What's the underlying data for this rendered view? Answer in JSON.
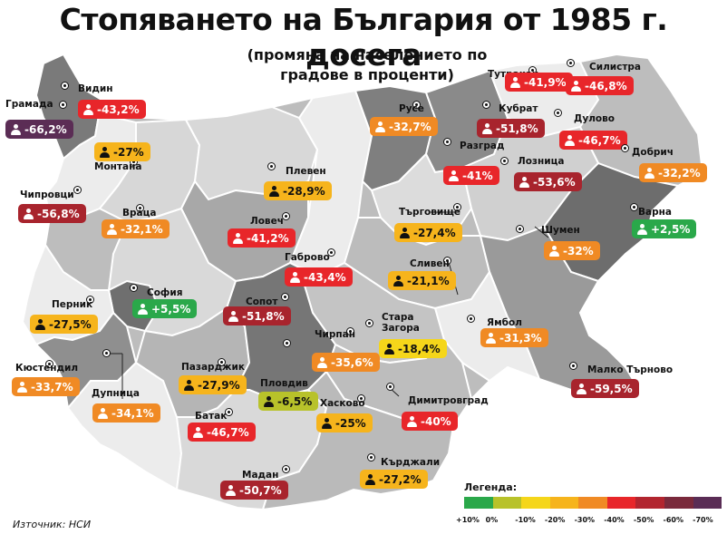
{
  "title": "Стопяването на България от 1985 г. досега",
  "subtitle": "(промяна на населението по градове в проценти)",
  "source": "Източник: НСИ",
  "legend": {
    "title": "Легенда:",
    "colors": [
      "#2aa84a",
      "#b8c22a",
      "#f5d61a",
      "#f6b41c",
      "#f08a24",
      "#e8262a",
      "#b2252f",
      "#7a2a3c",
      "#5a2d55"
    ],
    "ticks": [
      "+10%",
      "0%",
      "-10%",
      "-20%",
      "-30%",
      "-40%",
      "-50%",
      "-60%",
      "-70%"
    ]
  },
  "cities": [
    {
      "name": "Грамада",
      "value": "-66,2%",
      "color": "#5b2d55",
      "text": "#fff"
    },
    {
      "name": "Видин",
      "value": "-43,2%",
      "color": "#e8262a",
      "text": "#fff"
    },
    {
      "name": "Монтана",
      "value": "-27%",
      "color": "#f6b41c",
      "text": "#111"
    },
    {
      "name": "Чипровци",
      "value": "-56,8%",
      "color": "#a8242d",
      "text": "#fff"
    },
    {
      "name": "Враца",
      "value": "-32,1%",
      "color": "#f08a24",
      "text": "#fff"
    },
    {
      "name": "Плевен",
      "value": "-28,9%",
      "color": "#f6b41c",
      "text": "#111"
    },
    {
      "name": "Ловеч",
      "value": "-41,2%",
      "color": "#e8262a",
      "text": "#fff"
    },
    {
      "name": "Габрово",
      "value": "-43,4%",
      "color": "#e8262a",
      "text": "#fff"
    },
    {
      "name": "Русе",
      "value": "-32,7%",
      "color": "#f08a24",
      "text": "#fff"
    },
    {
      "name": "Тутракан",
      "value": "-41,9%",
      "color": "#e8262a",
      "text": "#fff"
    },
    {
      "name": "Силистра",
      "value": "-46,8%",
      "color": "#e8262a",
      "text": "#fff"
    },
    {
      "name": "Кубрат",
      "value": "-51,8%",
      "color": "#a8242d",
      "text": "#fff"
    },
    {
      "name": "Дулово",
      "value": "-46,7%",
      "color": "#e8262a",
      "text": "#fff"
    },
    {
      "name": "Разград",
      "value": "-41%",
      "color": "#e8262a",
      "text": "#fff"
    },
    {
      "name": "Лозница",
      "value": "-53,6%",
      "color": "#a8242d",
      "text": "#fff"
    },
    {
      "name": "Добрич",
      "value": "-32,2%",
      "color": "#f08a24",
      "text": "#fff"
    },
    {
      "name": "Търговище",
      "value": "-27,4%",
      "color": "#f6b41c",
      "text": "#111"
    },
    {
      "name": "Шумен",
      "value": "-32%",
      "color": "#f08a24",
      "text": "#fff"
    },
    {
      "name": "Варна",
      "value": "+2,5%",
      "color": "#2aa84a",
      "text": "#fff"
    },
    {
      "name": "Сливен",
      "value": "-21,1%",
      "color": "#f6b41c",
      "text": "#111"
    },
    {
      "name": "Перник",
      "value": "-27,5%",
      "color": "#f6b41c",
      "text": "#111"
    },
    {
      "name": "София",
      "value": "+5,5%",
      "color": "#2aa84a",
      "text": "#fff"
    },
    {
      "name": "Сопот",
      "value": "-51,8%",
      "color": "#a8242d",
      "text": "#fff"
    },
    {
      "name": "Чирпан",
      "value": "-35,6%",
      "color": "#f08a24",
      "text": "#fff"
    },
    {
      "name": "Стара Загора",
      "value": "-18,4%",
      "color": "#f5d61a",
      "text": "#111"
    },
    {
      "name": "Ямбол",
      "value": "-31,3%",
      "color": "#f08a24",
      "text": "#fff"
    },
    {
      "name": "Кюстендил",
      "value": "-33,7%",
      "color": "#f08a24",
      "text": "#fff"
    },
    {
      "name": "Дупница",
      "value": "-34,1%",
      "color": "#f08a24",
      "text": "#fff"
    },
    {
      "name": "Пазарджик",
      "value": "-27,9%",
      "color": "#f6b41c",
      "text": "#111"
    },
    {
      "name": "Пловдив",
      "value": "-6,5%",
      "color": "#b8c22a",
      "text": "#111"
    },
    {
      "name": "Хасково",
      "value": "-25%",
      "color": "#f6b41c",
      "text": "#111"
    },
    {
      "name": "Димитровград",
      "value": "-40%",
      "color": "#e8262a",
      "text": "#fff"
    },
    {
      "name": "Малко Търново",
      "value": "-59,5%",
      "color": "#a8242d",
      "text": "#fff"
    },
    {
      "name": "Батак",
      "value": "-46,7%",
      "color": "#e8262a",
      "text": "#fff"
    },
    {
      "name": "Мадан",
      "value": "-50,7%",
      "color": "#a8242d",
      "text": "#fff"
    },
    {
      "name": "Кърджали",
      "value": "-27,2%",
      "color": "#f6b41c",
      "text": "#111"
    }
  ]
}
